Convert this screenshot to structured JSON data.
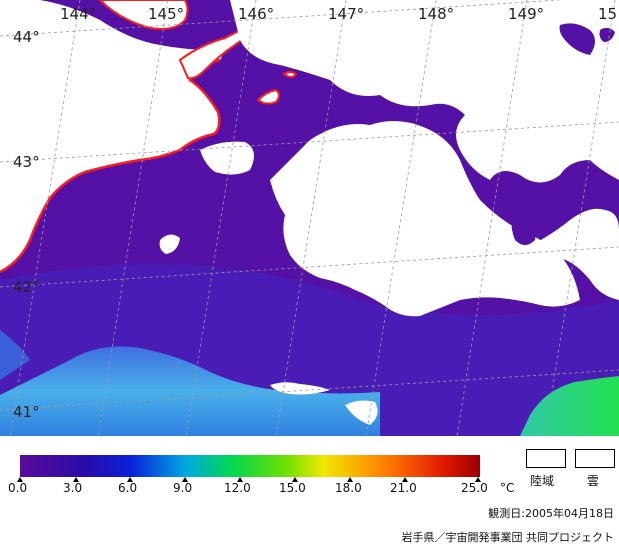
{
  "map": {
    "lon_labels": [
      "144°",
      "145°",
      "146°",
      "147°",
      "148°",
      "149°",
      "15"
    ],
    "lat_labels": [
      "44°",
      "43°",
      "42°",
      "41°"
    ]
  },
  "colorbar": {
    "ticks": [
      "0.0",
      "3.0",
      "6.0",
      "9.0",
      "12.0",
      "15.0",
      "18.0",
      "21.0",
      "25.0"
    ],
    "unit": "°C",
    "min": 0.0,
    "max": 25.0
  },
  "legend": {
    "land_label": "陸域",
    "cloud_label": "雲"
  },
  "footer": {
    "observation_date": "観測日:2005年04月18日",
    "credit": "岩手県／宇宙開発事業団 共同プロジェクト"
  },
  "colors": {
    "sea_cold": "#5a0fa8",
    "sea_mid": "#4a1fb8",
    "sea_warm_cyan": "#4aa8e8",
    "sea_green": "#22dd55",
    "coastline": "#ff1a1a",
    "cloud_land": "#ffffff"
  }
}
